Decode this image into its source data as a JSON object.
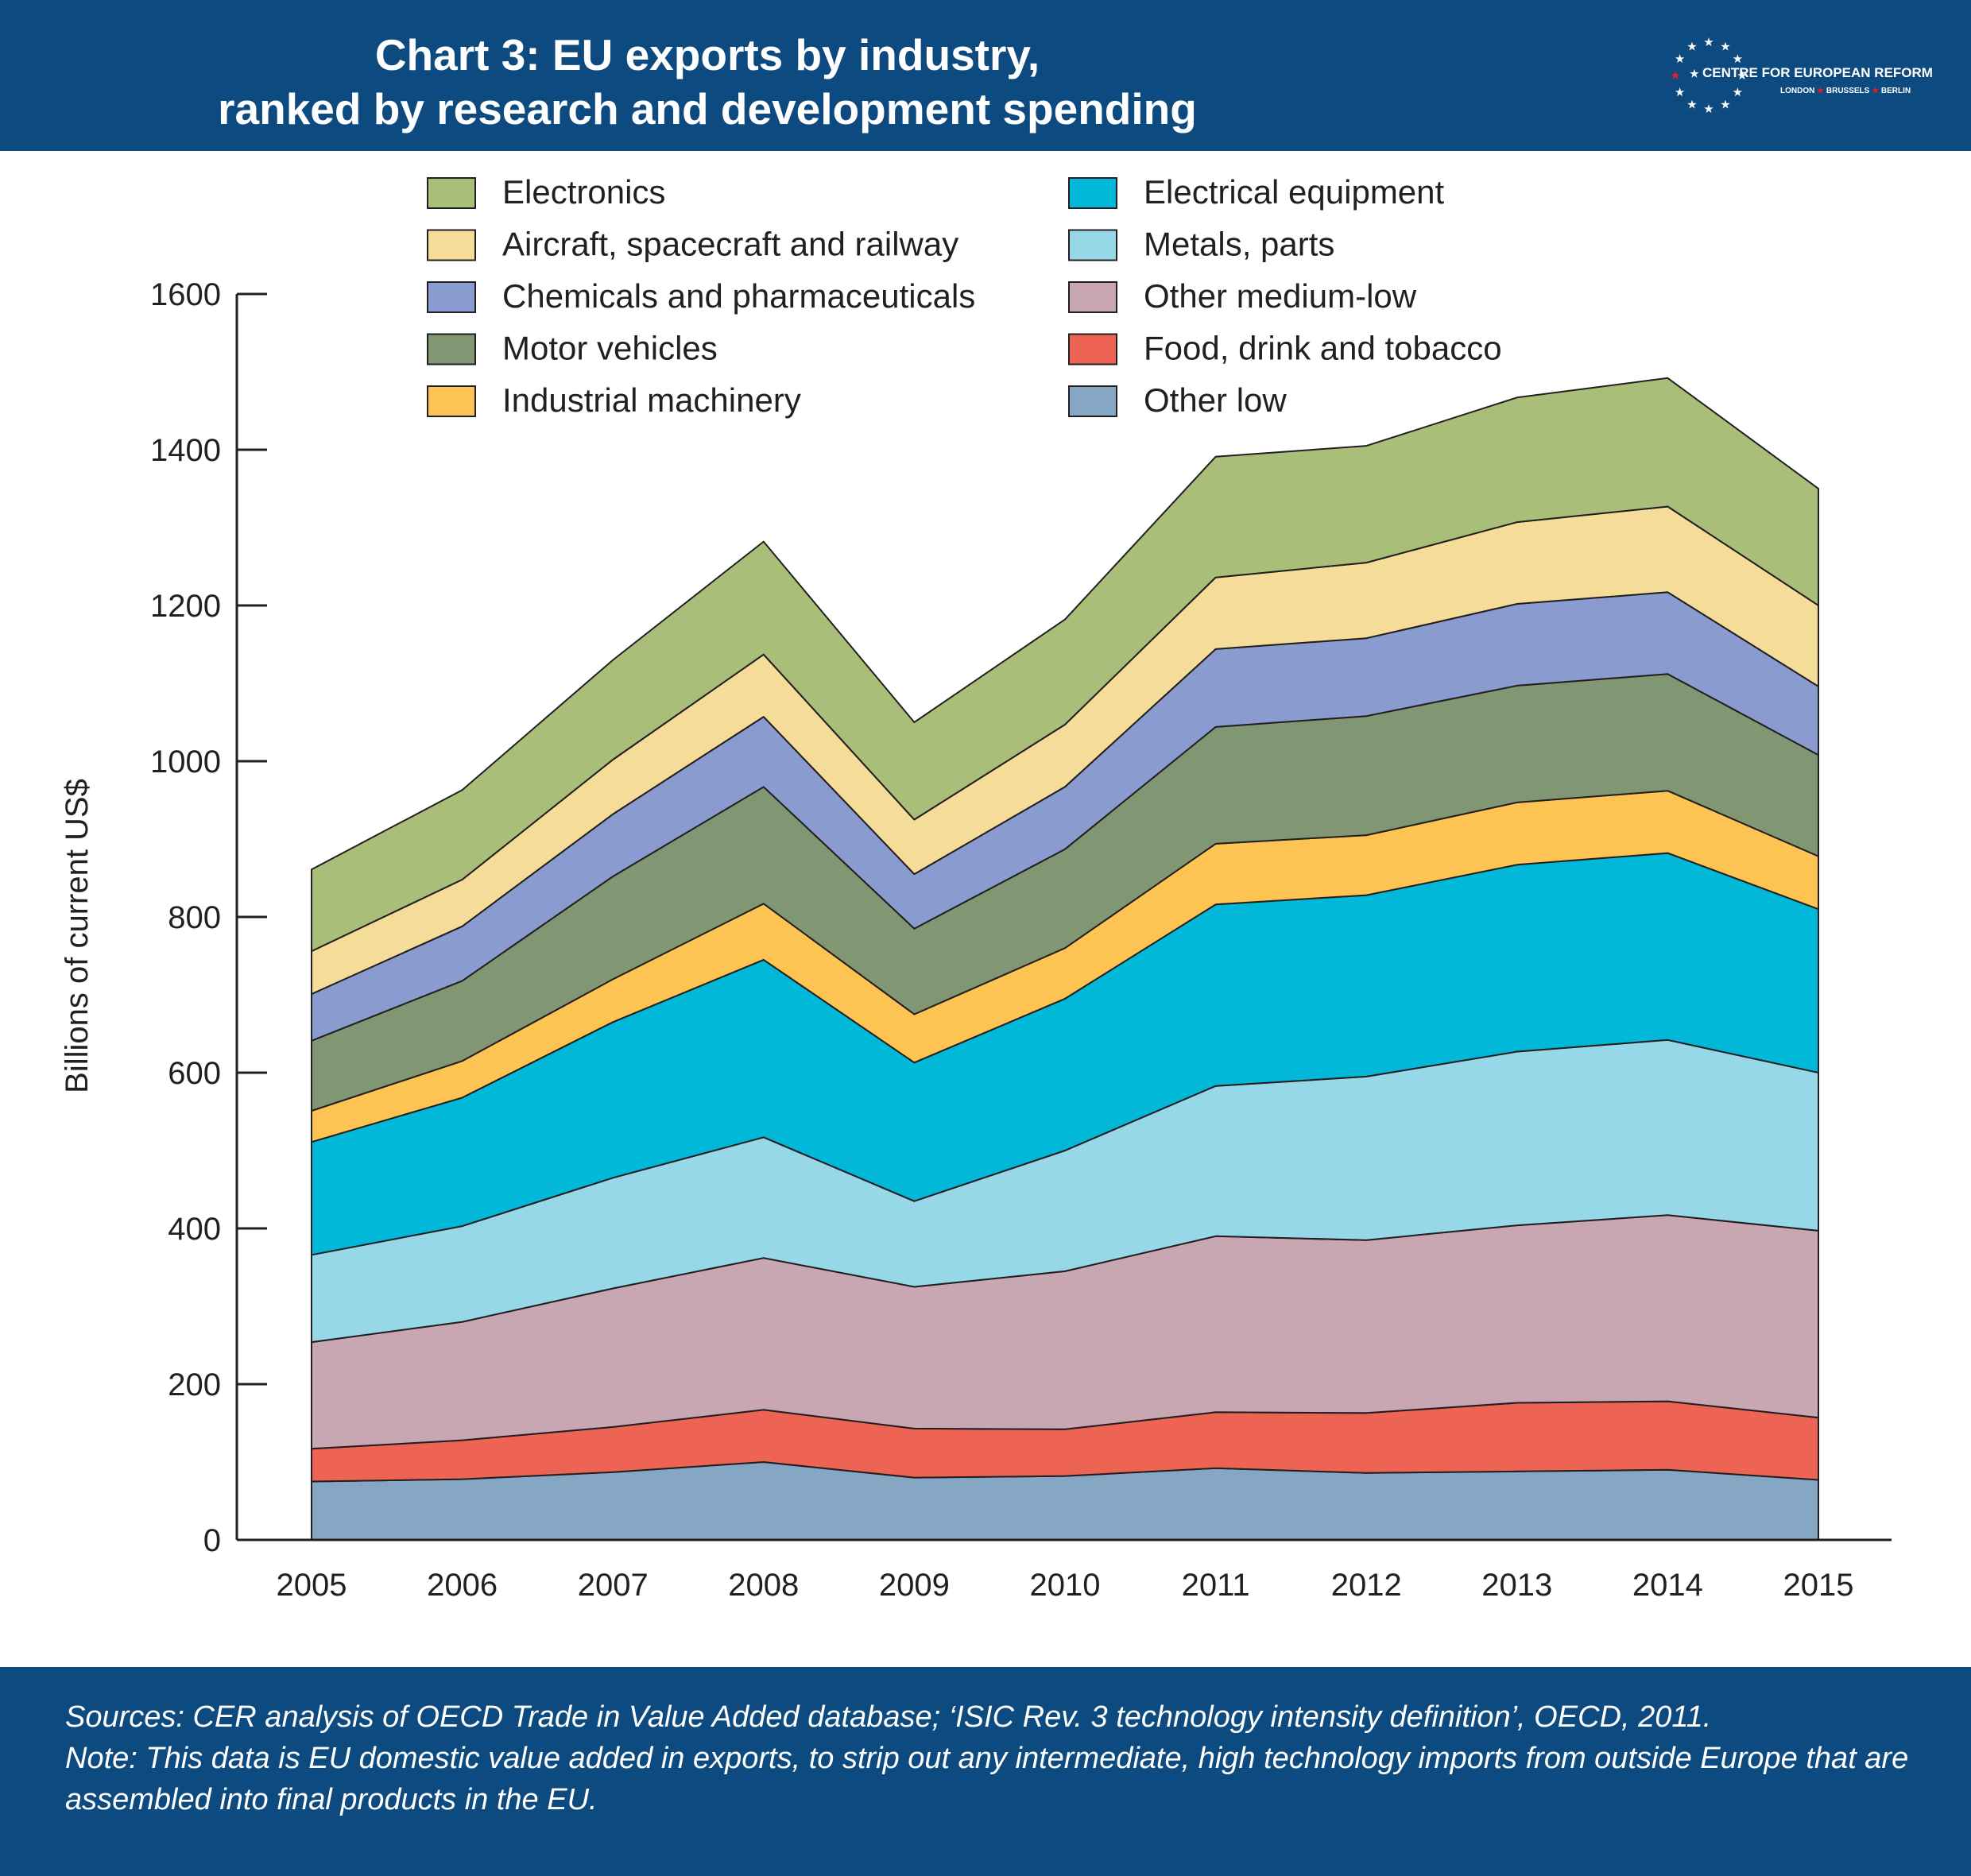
{
  "header": {
    "title_line1": "Chart 3: EU exports by industry,",
    "title_line2": "ranked by research and development spending",
    "logo_name": "CENTRE FOR EUROPEAN REFORM",
    "logo_city1": "LONDON",
    "logo_city2": "BRUSSELS",
    "logo_city3": "BERLIN"
  },
  "colors": {
    "header_bg": "#0d4a7f",
    "star": "#e31e24"
  },
  "chart_data": {
    "type": "area",
    "stacked": true,
    "x": [
      "2005",
      "2006",
      "2007",
      "2008",
      "2009",
      "2010",
      "2011",
      "2012",
      "2013",
      "2014",
      "2015"
    ],
    "ylabel": "Billions of current US$",
    "ylim": [
      0,
      1600
    ],
    "yticks": [
      0,
      200,
      400,
      600,
      800,
      1000,
      1200,
      1400,
      1600
    ],
    "grid": false,
    "legend_position": "top",
    "series": [
      {
        "name": "Other low",
        "color": "#85a7c3",
        "values": [
          75,
          78,
          87,
          100,
          80,
          82,
          92,
          86,
          88,
          90,
          77
        ]
      },
      {
        "name": "Food, drink and tobacco",
        "color": "#ee6454",
        "values": [
          42,
          50,
          58,
          67,
          63,
          60,
          72,
          77,
          88,
          88,
          80
        ]
      },
      {
        "name": "Other medium-low",
        "color": "#c8a7b3",
        "values": [
          137,
          152,
          178,
          195,
          182,
          203,
          226,
          222,
          228,
          239,
          240
        ]
      },
      {
        "name": "Metals, parts",
        "color": "#96d8e7",
        "values": [
          112,
          123,
          142,
          155,
          110,
          155,
          193,
          210,
          223,
          225,
          203
        ]
      },
      {
        "name": "Electrical equipment",
        "color": "#02b8d8",
        "values": [
          145,
          165,
          200,
          228,
          178,
          195,
          233,
          233,
          240,
          240,
          210
        ]
      },
      {
        "name": "Industrial machinery",
        "color": "#fdc453",
        "values": [
          40,
          47,
          55,
          72,
          62,
          65,
          78,
          77,
          80,
          80,
          68
        ]
      },
      {
        "name": "Motor vehicles",
        "color": "#819773",
        "values": [
          90,
          103,
          132,
          150,
          110,
          127,
          150,
          153,
          150,
          150,
          130
        ]
      },
      {
        "name": "Chemicals and pharmaceuticals",
        "color": "#8a9ccf",
        "values": [
          60,
          70,
          80,
          90,
          70,
          80,
          100,
          100,
          105,
          105,
          88
        ]
      },
      {
        "name": "Aircraft, spacecraft and railway",
        "color": "#f6dc99",
        "values": [
          55,
          60,
          70,
          80,
          70,
          80,
          92,
          97,
          105,
          110,
          104
        ]
      },
      {
        "name": "Electronics",
        "color": "#a9bf79",
        "values": [
          105,
          115,
          128,
          145,
          125,
          135,
          155,
          150,
          160,
          165,
          150
        ]
      }
    ],
    "legend_order": [
      "Electronics",
      "Electrical equipment",
      "Aircraft, spacecraft and railway",
      "Metals, parts",
      "Chemicals and pharmaceuticals",
      "Other medium-low",
      "Motor vehicles",
      "Food, drink and tobacco",
      "Industrial machinery",
      "Other low"
    ]
  },
  "footer": {
    "sources": "Sources: CER analysis of OECD Trade in Value Added database; ‘ISIC Rev. 3 technology intensity definition’, OECD, 2011.",
    "note_line1": "Note: This data is EU domestic value added in exports, to strip out any intermediate, high technology imports from outside Europe that are",
    "note_line2": "assembled into final products in the EU."
  }
}
